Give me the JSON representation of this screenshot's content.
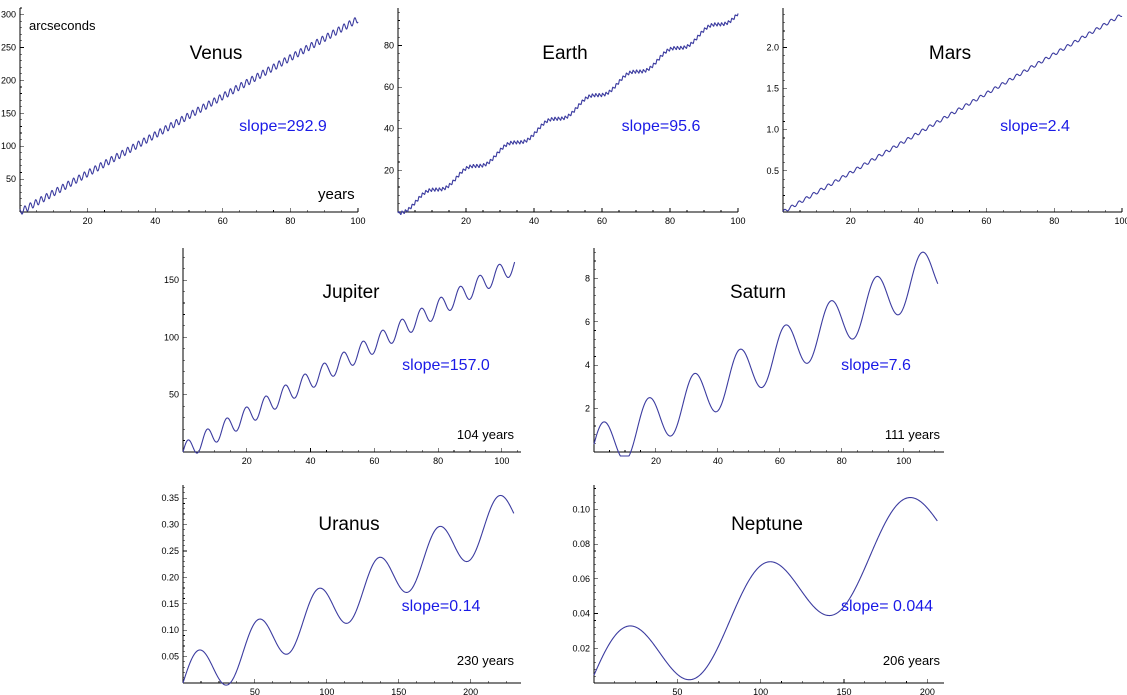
{
  "chart_data": [
    {
      "type": "line",
      "title": "Venus",
      "slope_label": "slope=292.9",
      "ylabel": "arcseconds",
      "xlabel": "years",
      "period_label": "",
      "xlim": [
        0,
        100
      ],
      "ylim": [
        0,
        310
      ],
      "xticks": [
        20,
        40,
        60,
        80,
        100
      ],
      "yticks": [
        50,
        100,
        150,
        200,
        250,
        300
      ],
      "slope": 2.929,
      "amplitude": 5,
      "period": 1.6,
      "noise": 0,
      "phase": 0.6,
      "x_end": 100,
      "samples": 900
    },
    {
      "type": "line",
      "title": "Earth",
      "slope_label": "slope=95.6",
      "ylabel": "",
      "xlabel": "",
      "period_label": "",
      "xlim": [
        0,
        100
      ],
      "ylim": [
        0,
        98
      ],
      "xticks": [
        20,
        40,
        60,
        80,
        100
      ],
      "yticks": [
        20,
        40,
        60,
        80
      ],
      "slope": 0.956,
      "amplitude": 1.8,
      "period": 11.86,
      "noise": 0.7,
      "phase": 0.8,
      "x_end": 100,
      "samples": 1400
    },
    {
      "type": "line",
      "title": "Mars",
      "slope_label": "slope=2.4",
      "ylabel": "",
      "xlabel": "",
      "period_label": "",
      "xlim": [
        0,
        100
      ],
      "ylim": [
        0,
        2.48
      ],
      "xticks": [
        20,
        40,
        60,
        80,
        100
      ],
      "yticks": [
        0.5,
        1.0,
        1.5,
        2.0
      ],
      "slope": 0.024,
      "amplitude": 0.02,
      "period": 2.14,
      "noise": 0,
      "phase": 0.3,
      "x_end": 100,
      "samples": 900
    },
    {
      "type": "line",
      "title": "Jupiter",
      "slope_label": "slope=157.0",
      "ylabel": "",
      "xlabel": "",
      "period_label": "104 years",
      "xlim": [
        0,
        106
      ],
      "ylim": [
        0,
        178
      ],
      "xticks": [
        20,
        40,
        60,
        80,
        100
      ],
      "yticks": [
        50,
        100,
        150
      ],
      "slope": 1.57,
      "amplitude": 8,
      "period": 6.1,
      "noise": 0,
      "phase": 0.25,
      "x_end": 104,
      "samples": 900
    },
    {
      "type": "line",
      "title": "Saturn",
      "slope_label": "slope=7.6",
      "ylabel": "",
      "xlabel": "",
      "period_label": "111 years",
      "xlim": [
        0,
        113
      ],
      "ylim": [
        0,
        9.4
      ],
      "xticks": [
        20,
        40,
        60,
        80,
        100
      ],
      "yticks": [
        2,
        4,
        6,
        8
      ],
      "slope": 0.076,
      "amplitude": 1.15,
      "period": 14.7,
      "noise": 0,
      "phase": 0.3,
      "x_end": 111,
      "samples": 900
    },
    {
      "type": "line",
      "title": "Uranus",
      "slope_label": "slope=0.14",
      "ylabel": "",
      "xlabel": "",
      "period_label": "230 years",
      "xlim": [
        0,
        235
      ],
      "ylim": [
        0,
        0.375
      ],
      "xticks": [
        50,
        100,
        150,
        200
      ],
      "yticks": [
        0.05,
        0.1,
        0.15,
        0.2,
        0.25,
        0.3,
        0.35
      ],
      "slope": 0.0014,
      "amplitude": 0.047,
      "period": 41.8,
      "noise": 0,
      "phase": 0.25,
      "x_end": 230,
      "samples": 900
    },
    {
      "type": "line",
      "title": "Neptune",
      "slope_label": "slope= 0.044",
      "ylabel": "",
      "xlabel": "",
      "period_label": "206 years",
      "xlim": [
        0,
        210
      ],
      "ylim": [
        0,
        0.114
      ],
      "xticks": [
        50,
        100,
        150,
        200
      ],
      "yticks": [
        0.02,
        0.04,
        0.06,
        0.08,
        0.1
      ],
      "slope": 0.00044,
      "amplitude": 0.024,
      "period": 84,
      "noise": 0,
      "phase": 0.28,
      "x_end": 206,
      "samples": 900
    }
  ]
}
